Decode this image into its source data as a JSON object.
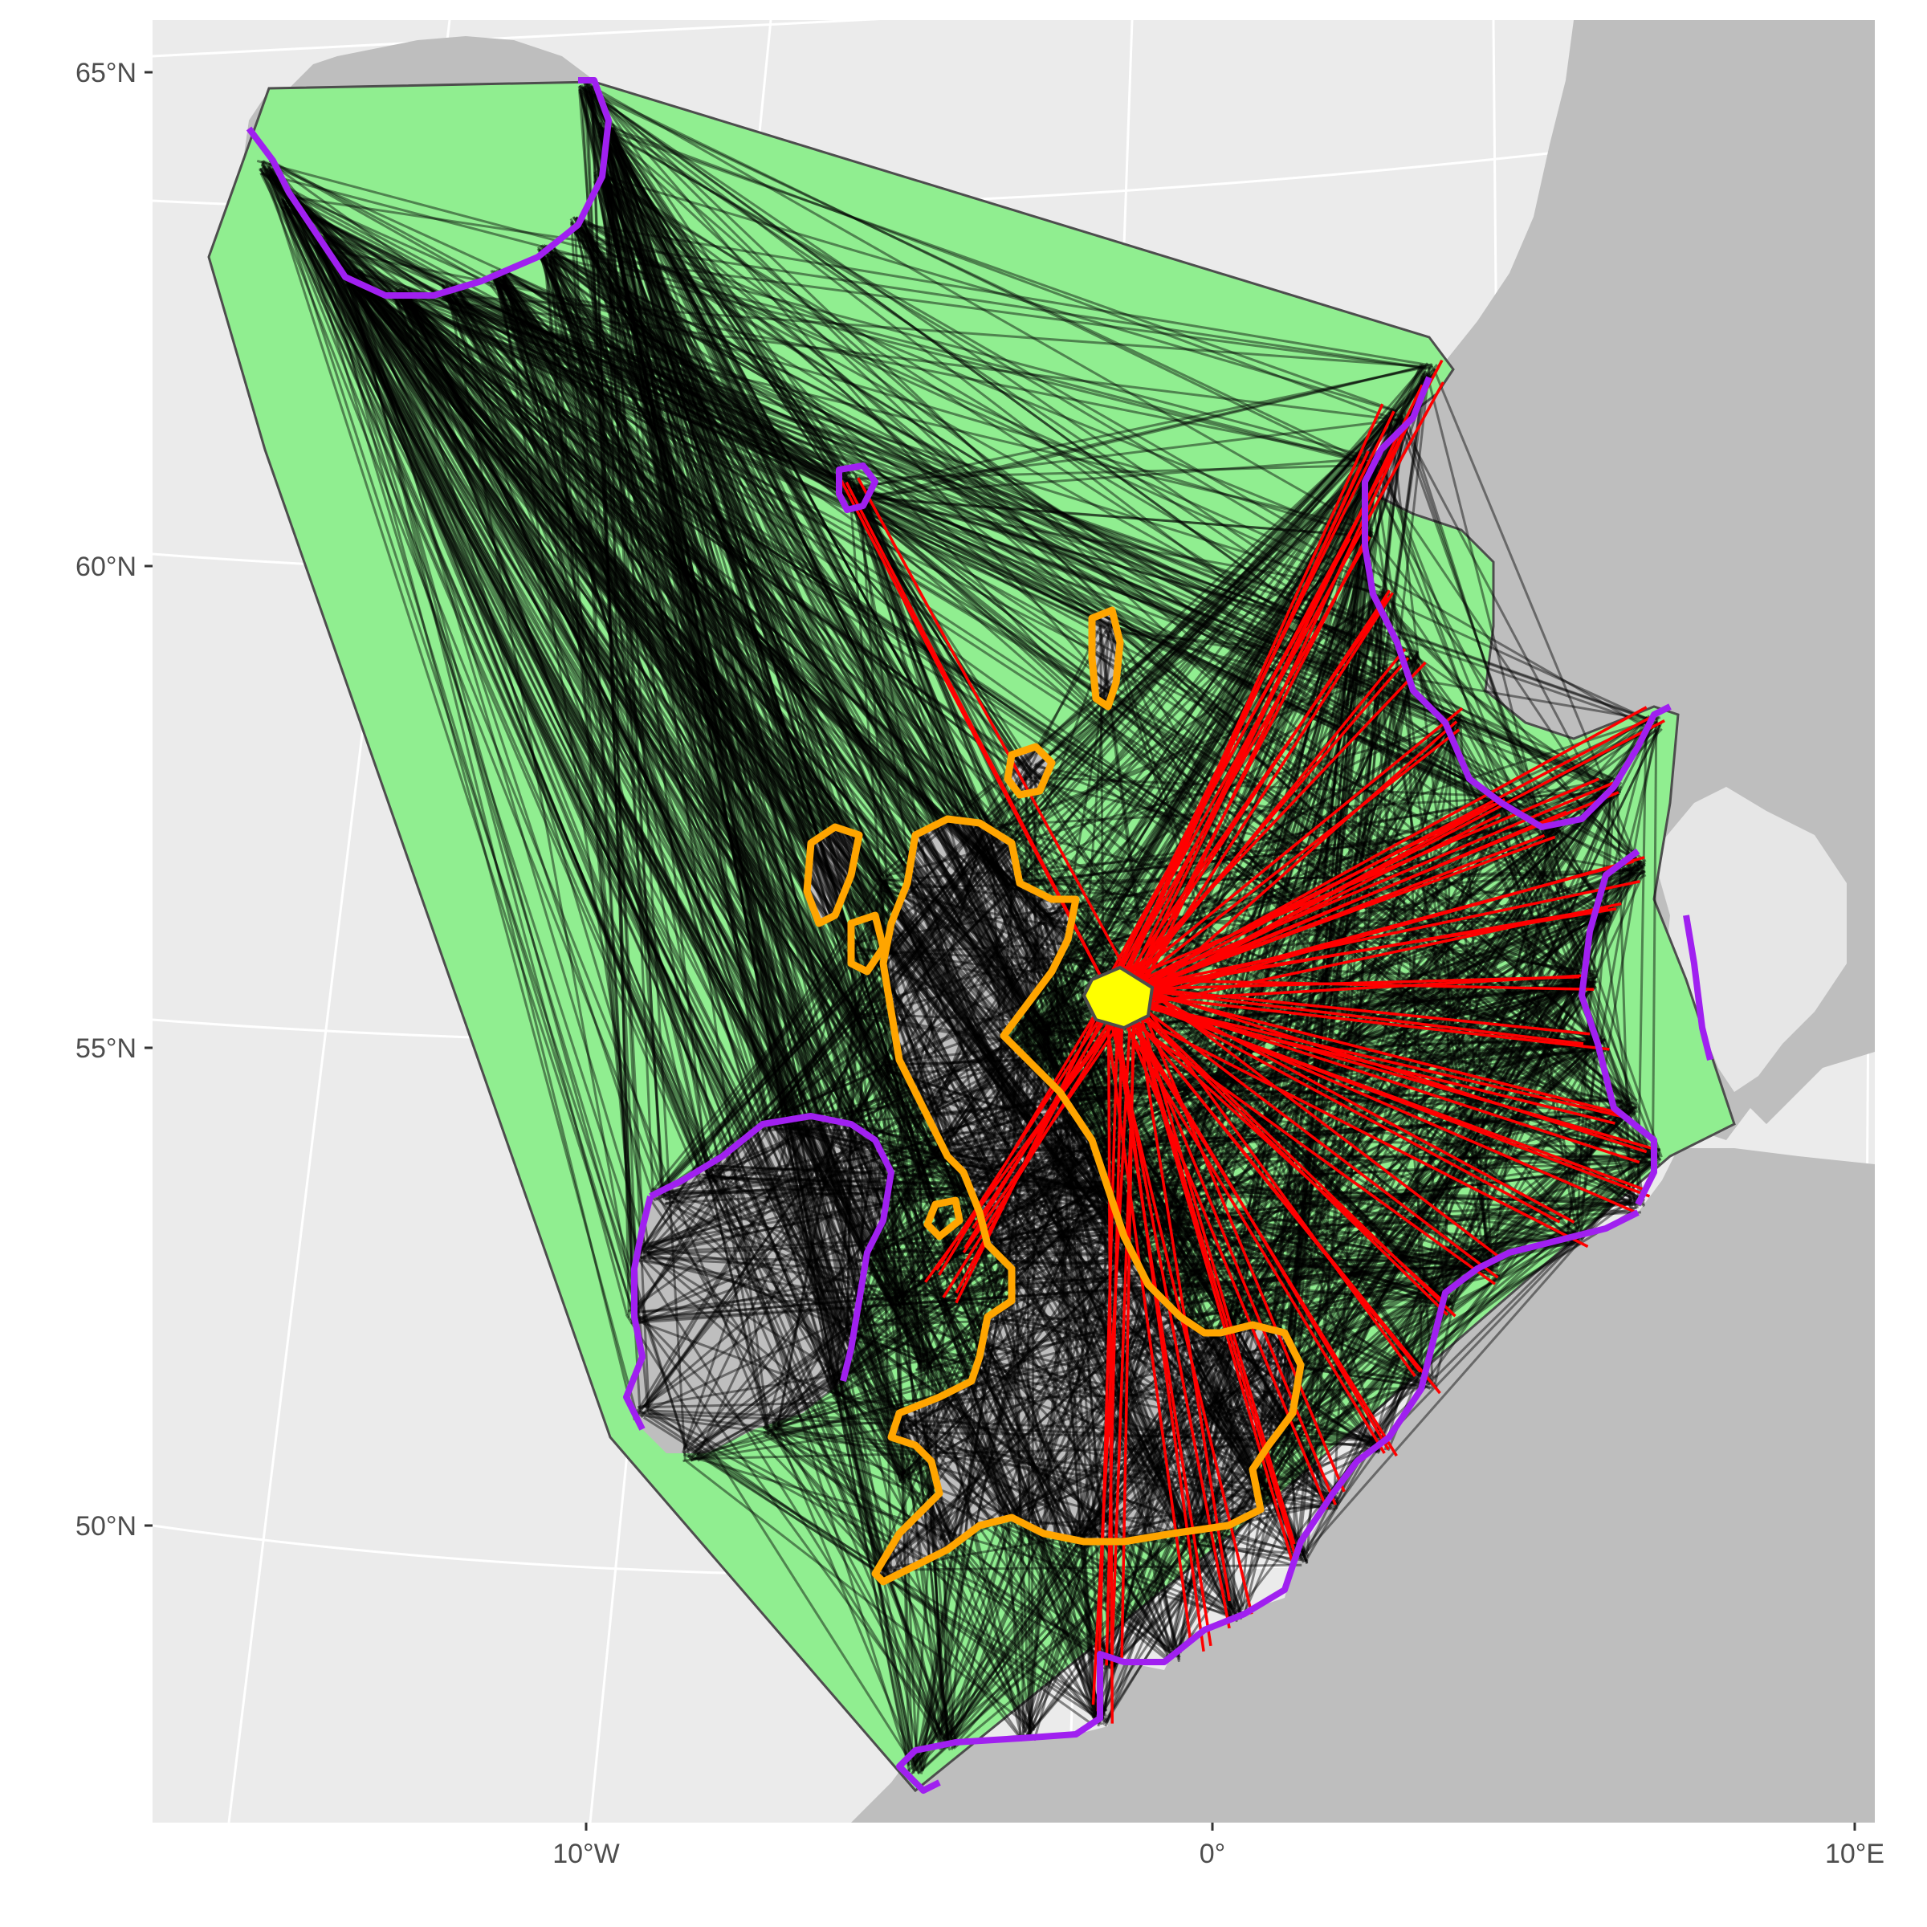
{
  "map": {
    "axis_y_labels": [
      "65°N",
      "60°N",
      "55°N",
      "50°N"
    ],
    "axis_x_labels": [
      "10°W",
      "0°",
      "10°E"
    ],
    "colors": {
      "panel_background": "#ebebeb",
      "graticule": "#ffffff",
      "land": "#bebebe",
      "light_land": "#e6e6e6",
      "hull_fill": "#90ee90",
      "hull_stroke": "#4d4d4d",
      "coast_purple": "#a020f0",
      "coast_orange": "#ffa500",
      "connection_black": "#000000",
      "connection_red": "#ff0000",
      "origin_fill": "#ffff00"
    },
    "icons": {
      "origin": "yellow-polygon-marker"
    }
  }
}
